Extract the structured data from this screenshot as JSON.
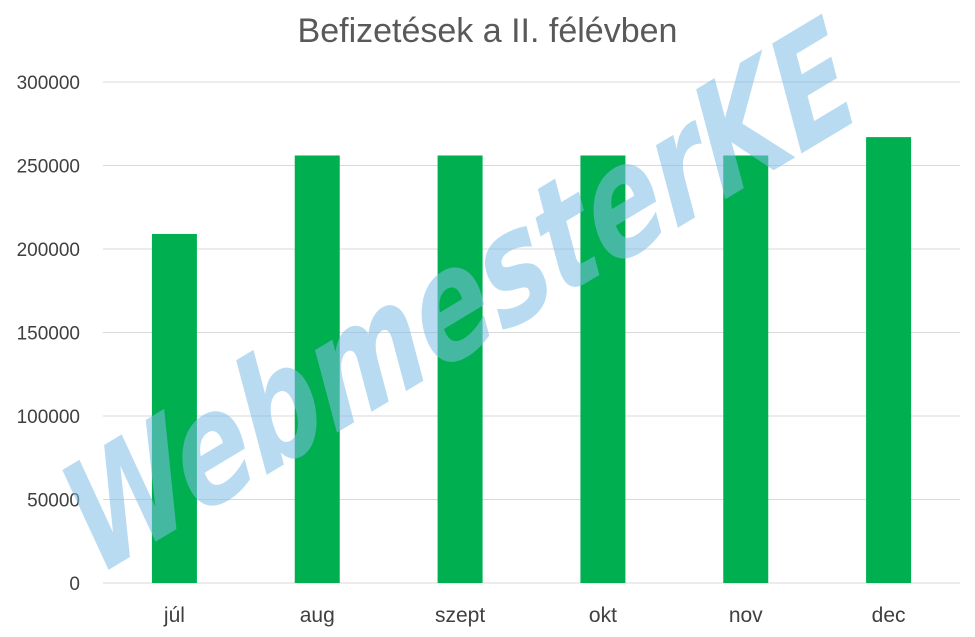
{
  "chart_data": {
    "type": "bar",
    "title": "Befizetések a II. félévben",
    "xlabel": "",
    "ylabel": "",
    "categories": [
      "júl",
      "aug",
      "szept",
      "okt",
      "nov",
      "dec"
    ],
    "values": [
      209000,
      256000,
      256000,
      256000,
      256000,
      267000
    ],
    "ylim": [
      0,
      300000
    ],
    "yticks": [
      "0",
      "50000",
      "100000",
      "150000",
      "200000",
      "250000",
      "300000"
    ],
    "grid": true,
    "legend": "none",
    "bar_color": "#00B050"
  },
  "watermark": {
    "text": "WebmesterKE"
  }
}
